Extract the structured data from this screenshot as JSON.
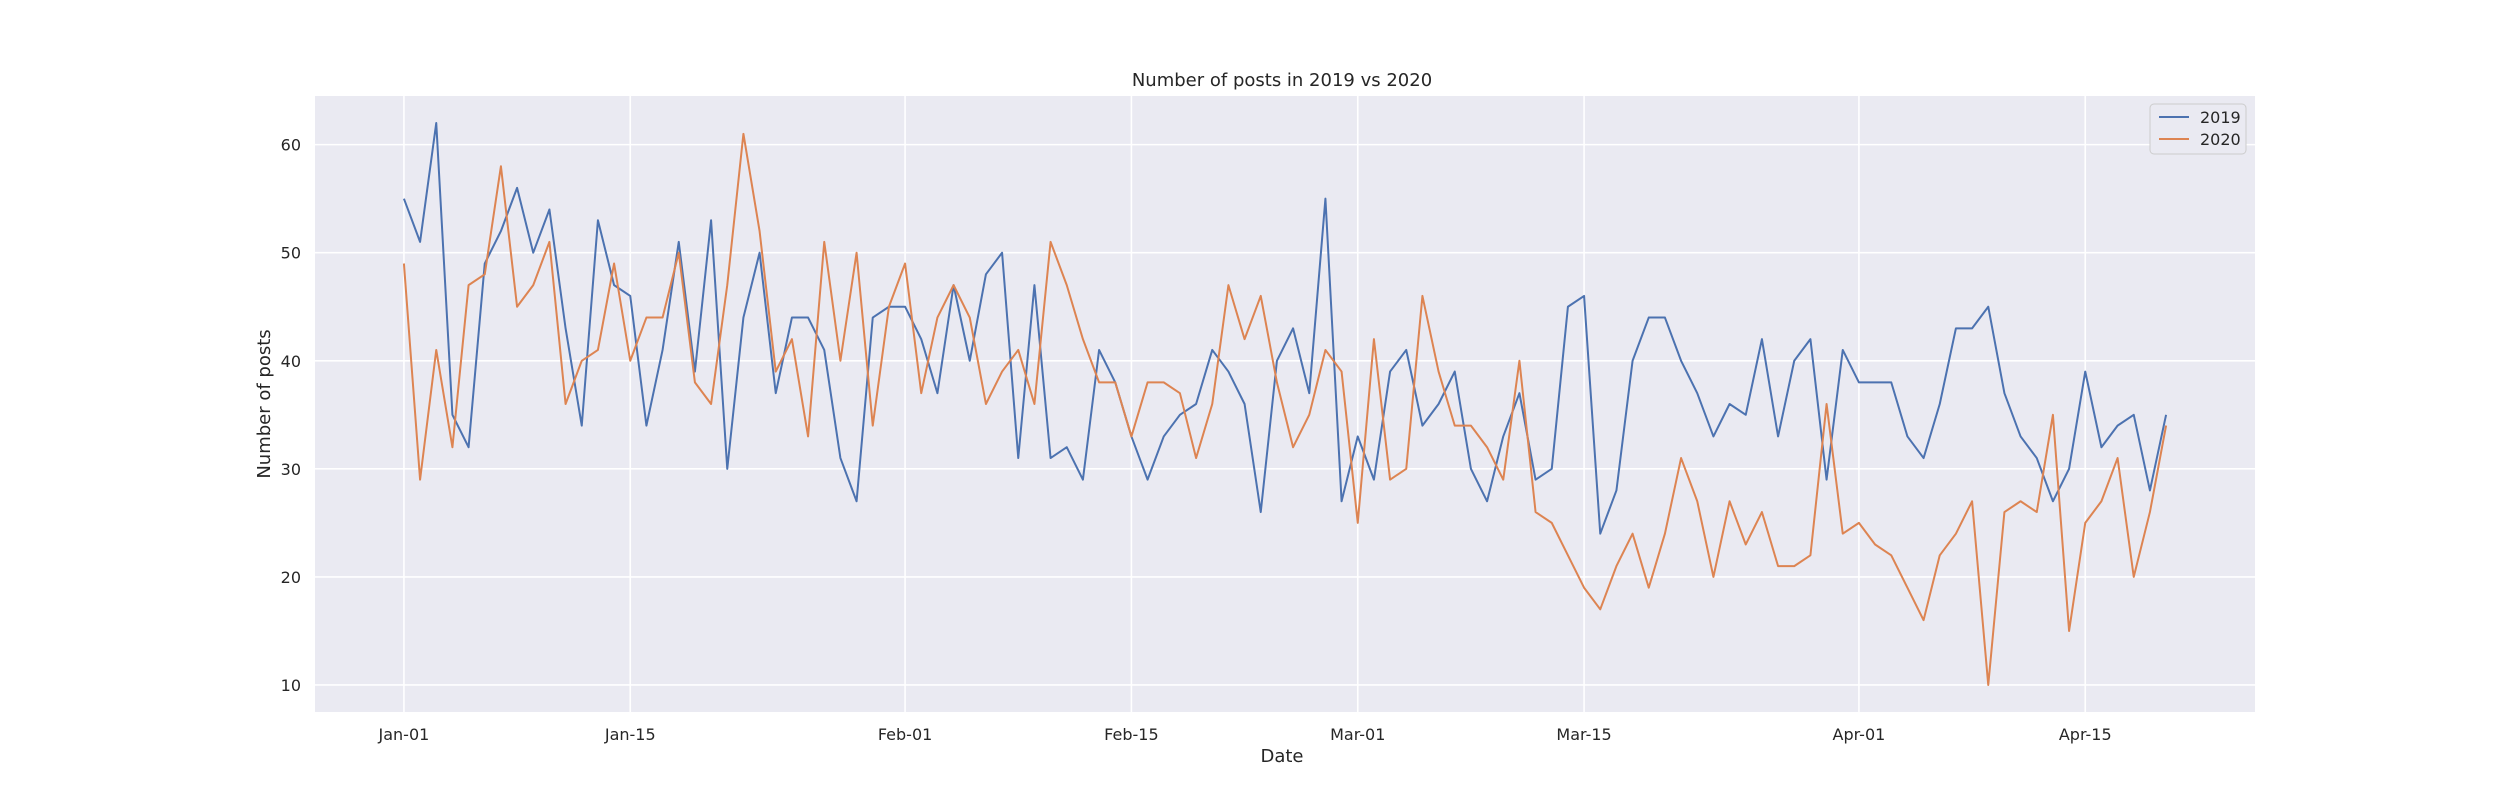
{
  "chart_data": {
    "type": "line",
    "title": "Number of posts in 2019 vs 2020",
    "xlabel": "Date",
    "ylabel": "Number of posts",
    "x_start": "Jan-01",
    "x_ticks": [
      {
        "day": 0,
        "label": "Jan-01"
      },
      {
        "day": 14,
        "label": "Jan-15"
      },
      {
        "day": 31,
        "label": "Feb-01"
      },
      {
        "day": 45,
        "label": "Feb-15"
      },
      {
        "day": 59,
        "label": "Mar-01"
      },
      {
        "day": 73,
        "label": "Mar-15"
      },
      {
        "day": 90,
        "label": "Apr-01"
      },
      {
        "day": 104,
        "label": "Apr-15"
      }
    ],
    "xlim": [
      -5.5,
      114.5
    ],
    "ylim": [
      7.5,
      64.5
    ],
    "y_ticks": [
      10,
      20,
      30,
      40,
      50,
      60
    ],
    "grid": true,
    "legend_position": "top-right",
    "series": [
      {
        "name": "2019",
        "color": "#4c72b0",
        "values": [
          55,
          51,
          62,
          35,
          32,
          49,
          52,
          56,
          50,
          54,
          43,
          34,
          53,
          47,
          46,
          34,
          41,
          51,
          39,
          53,
          30,
          44,
          50,
          37,
          44,
          44,
          41,
          31,
          27,
          44,
          45,
          45,
          42,
          37,
          47,
          40,
          48,
          50,
          31,
          47,
          31,
          32,
          29,
          41,
          38,
          33,
          29,
          33,
          35,
          36,
          41,
          39,
          36,
          26,
          40,
          43,
          37,
          55,
          27,
          33,
          29,
          39,
          41,
          34,
          36,
          39,
          30,
          27,
          33,
          37,
          29,
          30,
          45,
          46,
          24,
          28,
          40,
          44,
          44,
          40,
          37,
          33,
          36,
          35,
          42,
          33,
          40,
          42,
          29,
          41,
          38,
          38,
          38,
          33,
          31,
          36,
          43,
          43,
          45,
          37,
          33,
          31,
          27,
          30,
          39,
          32,
          34,
          35,
          28,
          35
        ]
      },
      {
        "name": "2020",
        "color": "#dd8452",
        "values": [
          49,
          29,
          41,
          32,
          47,
          48,
          58,
          45,
          47,
          51,
          36,
          40,
          41,
          49,
          40,
          44,
          44,
          50,
          38,
          36,
          47,
          61,
          52,
          39,
          42,
          33,
          51,
          40,
          50,
          34,
          45,
          49,
          37,
          44,
          47,
          44,
          36,
          39,
          41,
          36,
          51,
          47,
          42,
          38,
          38,
          33,
          38,
          38,
          37,
          31,
          36,
          47,
          42,
          46,
          38,
          32,
          35,
          41,
          39,
          25,
          42,
          29,
          30,
          46,
          39,
          34,
          34,
          32,
          29,
          40,
          26,
          25,
          22,
          19,
          17,
          21,
          24,
          19,
          24,
          31,
          27,
          20,
          27,
          23,
          26,
          21,
          21,
          22,
          36,
          24,
          25,
          23,
          22,
          19,
          16,
          22,
          24,
          27,
          10,
          26,
          27,
          26,
          35,
          15,
          25,
          27,
          31,
          20,
          26,
          34
        ]
      }
    ]
  }
}
